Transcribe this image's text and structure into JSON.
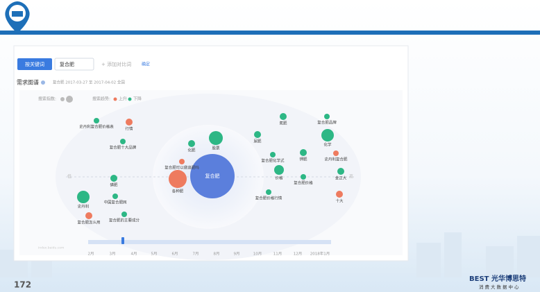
{
  "toolbar": {
    "keyword_button": "按关键词",
    "keyword": "复合肥",
    "add_compare": "+ 添加对比词",
    "confirm": "确定"
  },
  "section": {
    "title": "需求图谱",
    "subtitle": "复合肥  2017-03-27 至 2017-04-02  全国"
  },
  "legend": {
    "size_label": "搜索指数:",
    "trend_label": "搜索趋势:",
    "rise": "上升",
    "fall": "下降",
    "rise_color": "#ee7b5f",
    "fall_color": "#2db785"
  },
  "axis": {
    "low": "低",
    "high": "高"
  },
  "center": {
    "label": "复合肥",
    "color": "#5b7fdc"
  },
  "nodes": [
    {
      "label": "各种肥",
      "color": "#ee7b5f"
    },
    {
      "label": "复合肥可以做追肥吗",
      "color": "#ee7b5f"
    },
    {
      "label": "化肥",
      "color": "#2db785"
    },
    {
      "label": "股票",
      "color": "#2db785"
    },
    {
      "label": "史丹利复合肥价格表",
      "color": "#2db785"
    },
    {
      "label": "行情",
      "color": "#ee7b5f"
    },
    {
      "label": "复合肥十大品牌",
      "color": "#2db785"
    },
    {
      "label": "磷肥",
      "color": "#2db785"
    },
    {
      "label": "史丹利",
      "color": "#2db785"
    },
    {
      "label": "中国复合肥网",
      "color": "#2db785"
    },
    {
      "label": "复合肥怎么用",
      "color": "#ee7b5f"
    },
    {
      "label": "复合肥的主要成分",
      "color": "#2db785"
    },
    {
      "label": "氮肥",
      "color": "#2db785"
    },
    {
      "label": "复合肥品牌",
      "color": "#2db785"
    },
    {
      "label": "化学",
      "color": "#2db785"
    },
    {
      "label": "尿肥",
      "color": "#2db785"
    },
    {
      "label": "复合肥化学式",
      "color": "#2db785"
    },
    {
      "label": "钾肥",
      "color": "#2db785"
    },
    {
      "label": "史丹利复合肥",
      "color": "#ee7b5f"
    },
    {
      "label": "价格",
      "color": "#2db785"
    },
    {
      "label": "复合肥价格",
      "color": "#2db785"
    },
    {
      "label": "金正大",
      "color": "#2db785"
    },
    {
      "label": "十大",
      "color": "#ee7b5f"
    },
    {
      "label": "复合肥价格行情",
      "color": "#2db785"
    }
  ],
  "timeline": [
    "2月",
    "3月",
    "4月",
    "5月",
    "6月",
    "7月",
    "8月",
    "9月",
    "10月",
    "11月",
    "12月",
    "2018年1月"
  ],
  "watermark": "index.baidu.com",
  "footer": {
    "page": "172",
    "brand": "BEST 光华博思特",
    "brand_sub": "消费大数据中心"
  }
}
